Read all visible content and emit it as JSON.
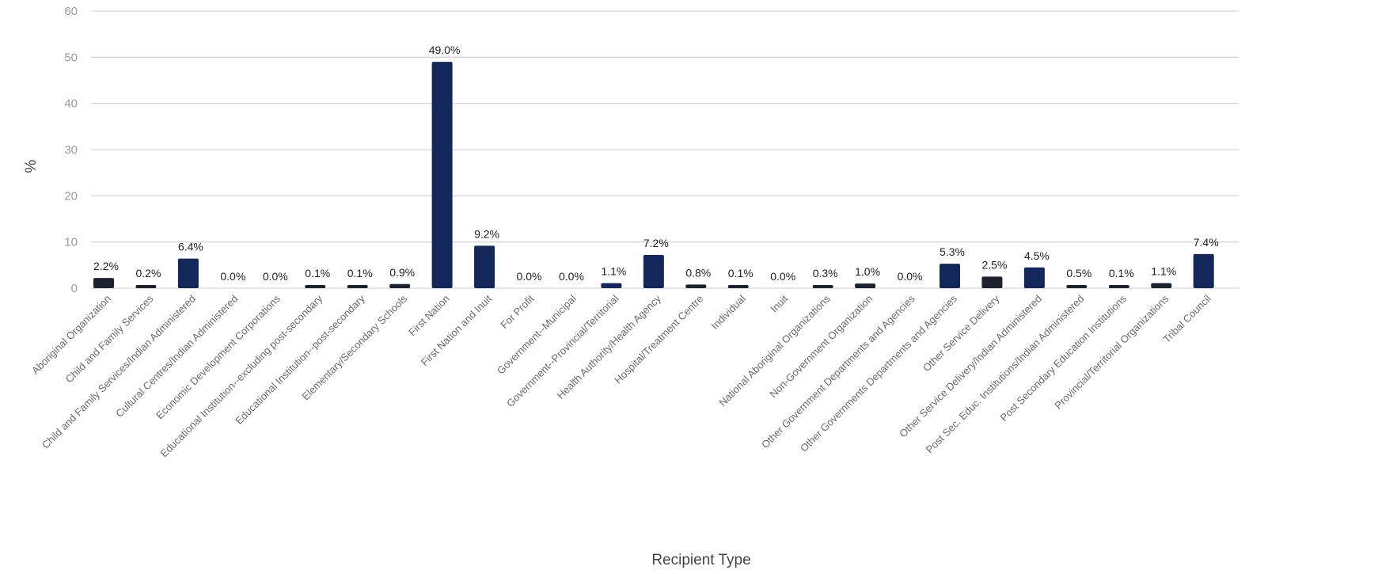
{
  "chart_data": {
    "type": "bar",
    "title": "",
    "xlabel": "Recipient Type",
    "ylabel": "%",
    "ylim": [
      0,
      60
    ],
    "yticks": [
      0,
      10,
      20,
      30,
      40,
      50,
      60
    ],
    "grid": true,
    "legend": "none",
    "categories": [
      "Aboriginal Organization",
      "Child and Family Services",
      "Child and Family Services/Indian Administered",
      "Cultural Centres/Indian Administered",
      "Economic Development Corporations",
      "Educational Institution--excluding post-secondary",
      "Educational Institution--post-secondary",
      "Elementary/Secondary Schools",
      "First Nation",
      "First Nation and Inuit",
      "For Profit",
      "Government--Municipal",
      "Government--Provincial/Territorial",
      "Health Authority/Health Agency",
      "Hospital/Treatment Centre",
      "Individual",
      "Inuit",
      "National Aboriginal Organizations",
      "Non-Government Organization",
      "Other Government Departments and Agencies",
      "Other Governments Departments and Agencies",
      "Other Service Delivery",
      "Other Service Delivery/Indian Administered",
      "Post Sec. Educ. Institutions/Indian Administered",
      "Post Secondary Education Institutions",
      "Provincial/Territorial Organizations",
      "Tribal Council"
    ],
    "values": [
      2.2,
      0.2,
      6.4,
      0.0,
      0.0,
      0.1,
      0.1,
      0.9,
      49.0,
      9.2,
      0.0,
      0.0,
      1.1,
      7.2,
      0.8,
      0.1,
      0.0,
      0.3,
      1.0,
      0.0,
      5.3,
      2.5,
      4.5,
      0.5,
      0.1,
      1.1,
      7.4
    ],
    "data_labels": [
      "2.2%",
      "0.2%",
      "6.4%",
      "0.0%",
      "0.0%",
      "0.1%",
      "0.1%",
      "0.9%",
      "49.0%",
      "9.2%",
      "0.0%",
      "0.0%",
      "1.1%",
      "7.2%",
      "0.8%",
      "0.1%",
      "0.0%",
      "0.3%",
      "1.0%",
      "0.0%",
      "5.3%",
      "2.5%",
      "4.5%",
      "0.5%",
      "0.1%",
      "1.1%",
      "7.4%"
    ],
    "colors": {
      "bar": "#13275b",
      "bar_dark": "#1d2230",
      "grid": "#d6d6d6",
      "tick_text": "#9a9a9a"
    }
  }
}
